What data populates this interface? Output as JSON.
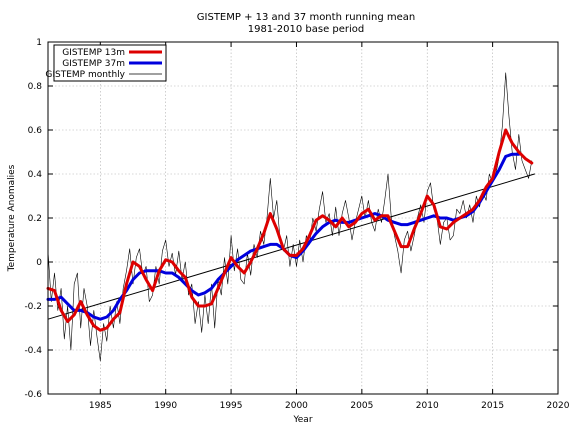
{
  "chart_data": {
    "type": "line",
    "title": "GISTEMP + 13 and 37 month running mean",
    "subtitle": "1981-2010 base period",
    "xlabel": "Year",
    "ylabel": "Temperature Anomalies",
    "xlim": [
      1981,
      2020
    ],
    "ylim": [
      -0.6,
      1.0
    ],
    "x_ticks": [
      1985,
      1990,
      1995,
      2000,
      2005,
      2010,
      2015,
      2020
    ],
    "y_ticks": [
      -0.6,
      -0.4,
      -0.2,
      0,
      0.2,
      0.4,
      0.6,
      0.8,
      1
    ],
    "grid": true,
    "legend_position": "top-left",
    "series": [
      {
        "name": "GISTEMP 13m",
        "color": "#dd0000",
        "points": [
          [
            1981.0,
            -0.12
          ],
          [
            1981.5,
            -0.13
          ],
          [
            1982.0,
            -0.22
          ],
          [
            1982.5,
            -0.27
          ],
          [
            1983.0,
            -0.24
          ],
          [
            1983.5,
            -0.18
          ],
          [
            1984.0,
            -0.24
          ],
          [
            1984.5,
            -0.29
          ],
          [
            1985.0,
            -0.31
          ],
          [
            1985.5,
            -0.3
          ],
          [
            1986.0,
            -0.26
          ],
          [
            1986.5,
            -0.23
          ],
          [
            1987.0,
            -0.1
          ],
          [
            1987.5,
            0.0
          ],
          [
            1988.0,
            -0.02
          ],
          [
            1988.5,
            -0.08
          ],
          [
            1989.0,
            -0.13
          ],
          [
            1989.5,
            -0.04
          ],
          [
            1990.0,
            0.01
          ],
          [
            1990.5,
            0.0
          ],
          [
            1991.0,
            -0.04
          ],
          [
            1991.5,
            -0.07
          ],
          [
            1992.0,
            -0.16
          ],
          [
            1992.5,
            -0.2
          ],
          [
            1993.0,
            -0.2
          ],
          [
            1993.5,
            -0.19
          ],
          [
            1994.0,
            -0.12
          ],
          [
            1994.5,
            -0.05
          ],
          [
            1995.0,
            0.02
          ],
          [
            1995.5,
            -0.02
          ],
          [
            1996.0,
            -0.05
          ],
          [
            1996.5,
            0.0
          ],
          [
            1997.0,
            0.06
          ],
          [
            1997.5,
            0.13
          ],
          [
            1998.0,
            0.22
          ],
          [
            1998.5,
            0.15
          ],
          [
            1999.0,
            0.06
          ],
          [
            1999.5,
            0.03
          ],
          [
            2000.0,
            0.03
          ],
          [
            2000.5,
            0.06
          ],
          [
            2001.0,
            0.12
          ],
          [
            2001.5,
            0.19
          ],
          [
            2002.0,
            0.21
          ],
          [
            2002.5,
            0.19
          ],
          [
            2003.0,
            0.16
          ],
          [
            2003.5,
            0.2
          ],
          [
            2004.0,
            0.16
          ],
          [
            2004.5,
            0.18
          ],
          [
            2005.0,
            0.22
          ],
          [
            2005.5,
            0.24
          ],
          [
            2006.0,
            0.19
          ],
          [
            2006.5,
            0.21
          ],
          [
            2007.0,
            0.21
          ],
          [
            2007.5,
            0.14
          ],
          [
            2008.0,
            0.07
          ],
          [
            2008.5,
            0.07
          ],
          [
            2009.0,
            0.15
          ],
          [
            2009.5,
            0.22
          ],
          [
            2010.0,
            0.3
          ],
          [
            2010.5,
            0.26
          ],
          [
            2011.0,
            0.16
          ],
          [
            2011.5,
            0.15
          ],
          [
            2012.0,
            0.18
          ],
          [
            2012.5,
            0.2
          ],
          [
            2013.0,
            0.22
          ],
          [
            2013.5,
            0.24
          ],
          [
            2014.0,
            0.28
          ],
          [
            2014.5,
            0.34
          ],
          [
            2015.0,
            0.38
          ],
          [
            2015.5,
            0.5
          ],
          [
            2016.0,
            0.6
          ],
          [
            2016.5,
            0.54
          ],
          [
            2017.0,
            0.5
          ],
          [
            2017.5,
            0.47
          ],
          [
            2018.0,
            0.45
          ]
        ]
      },
      {
        "name": "GISTEMP 37m",
        "color": "#0000dd",
        "points": [
          [
            1981.0,
            -0.17
          ],
          [
            1981.5,
            -0.17
          ],
          [
            1982.0,
            -0.16
          ],
          [
            1982.5,
            -0.19
          ],
          [
            1983.0,
            -0.22
          ],
          [
            1983.5,
            -0.22
          ],
          [
            1984.0,
            -0.23
          ],
          [
            1984.5,
            -0.25
          ],
          [
            1985.0,
            -0.26
          ],
          [
            1985.5,
            -0.25
          ],
          [
            1986.0,
            -0.22
          ],
          [
            1986.5,
            -0.17
          ],
          [
            1987.0,
            -0.13
          ],
          [
            1987.5,
            -0.08
          ],
          [
            1988.0,
            -0.05
          ],
          [
            1988.5,
            -0.04
          ],
          [
            1989.0,
            -0.04
          ],
          [
            1989.5,
            -0.04
          ],
          [
            1990.0,
            -0.05
          ],
          [
            1990.5,
            -0.05
          ],
          [
            1991.0,
            -0.07
          ],
          [
            1991.5,
            -0.1
          ],
          [
            1992.0,
            -0.13
          ],
          [
            1992.5,
            -0.15
          ],
          [
            1993.0,
            -0.14
          ],
          [
            1993.5,
            -0.12
          ],
          [
            1994.0,
            -0.08
          ],
          [
            1994.5,
            -0.05
          ],
          [
            1995.0,
            -0.02
          ],
          [
            1995.5,
            0.01
          ],
          [
            1996.0,
            0.03
          ],
          [
            1996.5,
            0.05
          ],
          [
            1997.0,
            0.06
          ],
          [
            1997.5,
            0.07
          ],
          [
            1998.0,
            0.08
          ],
          [
            1998.5,
            0.08
          ],
          [
            1999.0,
            0.06
          ],
          [
            1999.5,
            0.03
          ],
          [
            2000.0,
            0.02
          ],
          [
            2000.5,
            0.05
          ],
          [
            2001.0,
            0.09
          ],
          [
            2001.5,
            0.13
          ],
          [
            2002.0,
            0.16
          ],
          [
            2002.5,
            0.18
          ],
          [
            2003.0,
            0.19
          ],
          [
            2003.5,
            0.18
          ],
          [
            2004.0,
            0.18
          ],
          [
            2004.5,
            0.19
          ],
          [
            2005.0,
            0.2
          ],
          [
            2005.5,
            0.21
          ],
          [
            2006.0,
            0.22
          ],
          [
            2006.5,
            0.21
          ],
          [
            2007.0,
            0.19
          ],
          [
            2007.5,
            0.18
          ],
          [
            2008.0,
            0.17
          ],
          [
            2008.5,
            0.17
          ],
          [
            2009.0,
            0.18
          ],
          [
            2009.5,
            0.19
          ],
          [
            2010.0,
            0.2
          ],
          [
            2010.5,
            0.21
          ],
          [
            2011.0,
            0.2
          ],
          [
            2011.5,
            0.2
          ],
          [
            2012.0,
            0.19
          ],
          [
            2012.5,
            0.2
          ],
          [
            2013.0,
            0.21
          ],
          [
            2013.5,
            0.23
          ],
          [
            2014.0,
            0.27
          ],
          [
            2014.5,
            0.32
          ],
          [
            2015.0,
            0.37
          ],
          [
            2015.5,
            0.42
          ],
          [
            2016.0,
            0.48
          ],
          [
            2016.5,
            0.49
          ],
          [
            2017.0,
            0.49
          ]
        ]
      },
      {
        "name": "GISTEMP monthly",
        "color": "#000000",
        "points": [
          [
            1981.0,
            0.05
          ],
          [
            1981.25,
            -0.18
          ],
          [
            1981.5,
            -0.05
          ],
          [
            1981.75,
            -0.22
          ],
          [
            1982.0,
            -0.12
          ],
          [
            1982.25,
            -0.35
          ],
          [
            1982.5,
            -0.2
          ],
          [
            1982.75,
            -0.4
          ],
          [
            1983.0,
            -0.1
          ],
          [
            1983.25,
            -0.05
          ],
          [
            1983.5,
            -0.3
          ],
          [
            1983.75,
            -0.12
          ],
          [
            1984.0,
            -0.2
          ],
          [
            1984.25,
            -0.38
          ],
          [
            1984.5,
            -0.22
          ],
          [
            1984.75,
            -0.34
          ],
          [
            1985.0,
            -0.45
          ],
          [
            1985.25,
            -0.28
          ],
          [
            1985.5,
            -0.36
          ],
          [
            1985.75,
            -0.2
          ],
          [
            1986.0,
            -0.3
          ],
          [
            1986.25,
            -0.18
          ],
          [
            1986.5,
            -0.28
          ],
          [
            1986.75,
            -0.12
          ],
          [
            1987.0,
            -0.04
          ],
          [
            1987.25,
            0.06
          ],
          [
            1987.5,
            -0.1
          ],
          [
            1987.75,
            0.02
          ],
          [
            1988.0,
            0.06
          ],
          [
            1988.25,
            -0.06
          ],
          [
            1988.5,
            -0.02
          ],
          [
            1988.75,
            -0.18
          ],
          [
            1989.0,
            -0.15
          ],
          [
            1989.25,
            -0.02
          ],
          [
            1989.5,
            -0.1
          ],
          [
            1989.75,
            0.05
          ],
          [
            1990.0,
            0.1
          ],
          [
            1990.25,
            -0.02
          ],
          [
            1990.5,
            0.04
          ],
          [
            1990.75,
            -0.06
          ],
          [
            1991.0,
            0.05
          ],
          [
            1991.25,
            -0.08
          ],
          [
            1991.5,
            0.0
          ],
          [
            1991.75,
            -0.15
          ],
          [
            1992.0,
            -0.1
          ],
          [
            1992.25,
            -0.28
          ],
          [
            1992.5,
            -0.18
          ],
          [
            1992.75,
            -0.32
          ],
          [
            1993.0,
            -0.15
          ],
          [
            1993.25,
            -0.28
          ],
          [
            1993.5,
            -0.1
          ],
          [
            1993.75,
            -0.3
          ],
          [
            1994.0,
            -0.08
          ],
          [
            1994.25,
            -0.15
          ],
          [
            1994.5,
            0.02
          ],
          [
            1994.75,
            -0.1
          ],
          [
            1995.0,
            0.12
          ],
          [
            1995.25,
            -0.04
          ],
          [
            1995.5,
            0.06
          ],
          [
            1995.75,
            -0.08
          ],
          [
            1996.0,
            -0.1
          ],
          [
            1996.25,
            0.04
          ],
          [
            1996.5,
            -0.06
          ],
          [
            1996.75,
            0.08
          ],
          [
            1997.0,
            0.02
          ],
          [
            1997.25,
            0.14
          ],
          [
            1997.5,
            0.08
          ],
          [
            1997.75,
            0.2
          ],
          [
            1998.0,
            0.38
          ],
          [
            1998.25,
            0.2
          ],
          [
            1998.5,
            0.28
          ],
          [
            1998.75,
            0.1
          ],
          [
            1999.0,
            0.05
          ],
          [
            1999.25,
            0.12
          ],
          [
            1999.5,
            -0.02
          ],
          [
            1999.75,
            0.08
          ],
          [
            2000.0,
            -0.02
          ],
          [
            2000.25,
            0.1
          ],
          [
            2000.5,
            0.0
          ],
          [
            2000.75,
            0.12
          ],
          [
            2001.0,
            0.08
          ],
          [
            2001.25,
            0.2
          ],
          [
            2001.5,
            0.14
          ],
          [
            2001.75,
            0.24
          ],
          [
            2002.0,
            0.32
          ],
          [
            2002.25,
            0.18
          ],
          [
            2002.5,
            0.22
          ],
          [
            2002.75,
            0.12
          ],
          [
            2003.0,
            0.25
          ],
          [
            2003.25,
            0.12
          ],
          [
            2003.5,
            0.22
          ],
          [
            2003.75,
            0.28
          ],
          [
            2004.0,
            0.2
          ],
          [
            2004.25,
            0.1
          ],
          [
            2004.5,
            0.18
          ],
          [
            2004.75,
            0.24
          ],
          [
            2005.0,
            0.3
          ],
          [
            2005.25,
            0.2
          ],
          [
            2005.5,
            0.28
          ],
          [
            2005.75,
            0.18
          ],
          [
            2006.0,
            0.14
          ],
          [
            2006.25,
            0.24
          ],
          [
            2006.5,
            0.18
          ],
          [
            2006.75,
            0.28
          ],
          [
            2007.0,
            0.4
          ],
          [
            2007.25,
            0.2
          ],
          [
            2007.5,
            0.12
          ],
          [
            2007.75,
            0.05
          ],
          [
            2008.0,
            -0.05
          ],
          [
            2008.25,
            0.1
          ],
          [
            2008.5,
            0.14
          ],
          [
            2008.75,
            0.05
          ],
          [
            2009.0,
            0.12
          ],
          [
            2009.25,
            0.2
          ],
          [
            2009.5,
            0.26
          ],
          [
            2009.75,
            0.18
          ],
          [
            2010.0,
            0.32
          ],
          [
            2010.25,
            0.36
          ],
          [
            2010.5,
            0.24
          ],
          [
            2010.75,
            0.2
          ],
          [
            2011.0,
            0.08
          ],
          [
            2011.25,
            0.18
          ],
          [
            2011.5,
            0.2
          ],
          [
            2011.75,
            0.1
          ],
          [
            2012.0,
            0.12
          ],
          [
            2012.25,
            0.24
          ],
          [
            2012.5,
            0.22
          ],
          [
            2012.75,
            0.28
          ],
          [
            2013.0,
            0.2
          ],
          [
            2013.25,
            0.26
          ],
          [
            2013.5,
            0.18
          ],
          [
            2013.75,
            0.3
          ],
          [
            2014.0,
            0.25
          ],
          [
            2014.25,
            0.32
          ],
          [
            2014.5,
            0.28
          ],
          [
            2014.75,
            0.4
          ],
          [
            2015.0,
            0.36
          ],
          [
            2015.25,
            0.4
          ],
          [
            2015.5,
            0.48
          ],
          [
            2015.75,
            0.62
          ],
          [
            2016.0,
            0.86
          ],
          [
            2016.25,
            0.66
          ],
          [
            2016.5,
            0.5
          ],
          [
            2016.75,
            0.42
          ],
          [
            2017.0,
            0.58
          ],
          [
            2017.25,
            0.46
          ],
          [
            2017.5,
            0.42
          ],
          [
            2017.75,
            0.38
          ],
          [
            2018.0,
            0.46
          ]
        ]
      },
      {
        "name": "",
        "color": "#000000",
        "points": [
          [
            1981.0,
            -0.26
          ],
          [
            2018.2,
            0.4
          ]
        ]
      }
    ]
  }
}
